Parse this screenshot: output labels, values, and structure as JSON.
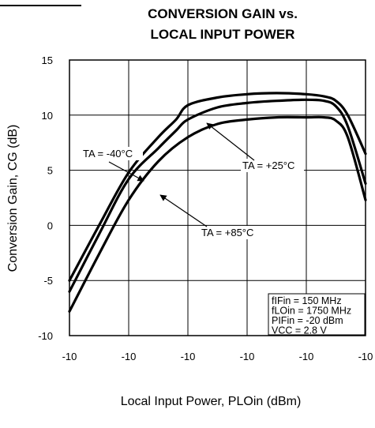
{
  "chart_data": {
    "type": "line",
    "title": [
      "CONVERSION GAIN vs.",
      "LOCAL INPUT POWER"
    ],
    "xlabel": "Local Input Power, PLOin (dBm)",
    "ylabel": "Conversion Gain, CG (dB)",
    "x_tick_labels": [
      "-10",
      "-10",
      "-10",
      "-10",
      "-10",
      "-10"
    ],
    "y_ticks": [
      15,
      10,
      5,
      0,
      -5,
      -10
    ],
    "xlim": [
      0,
      5
    ],
    "ylim": [
      -10,
      15
    ],
    "grid": true,
    "series": [
      {
        "name": "TA = -40°C",
        "x": [
          0,
          0.5,
          1.0,
          1.5,
          1.8,
          2.0,
          2.5,
          3.0,
          3.5,
          4.0,
          4.3,
          4.5,
          4.7,
          5.0
        ],
        "y": [
          -5.0,
          0.0,
          4.8,
          8.0,
          9.6,
          10.9,
          11.6,
          11.9,
          12.0,
          11.9,
          11.7,
          11.3,
          10.0,
          6.5
        ]
      },
      {
        "name": "TA = +25°C",
        "x": [
          0,
          0.5,
          1.0,
          1.5,
          1.8,
          2.0,
          2.5,
          3.0,
          3.5,
          4.0,
          4.3,
          4.5,
          4.7,
          5.0
        ],
        "y": [
          -6.0,
          -0.8,
          4.2,
          7.0,
          8.6,
          9.6,
          10.7,
          11.1,
          11.3,
          11.4,
          11.3,
          10.8,
          9.0,
          3.8
        ]
      },
      {
        "name": "TA = +85°C",
        "x": [
          0,
          0.5,
          1.0,
          1.5,
          2.0,
          2.5,
          3.0,
          3.5,
          4.0,
          4.3,
          4.5,
          4.7,
          5.0
        ],
        "y": [
          -7.8,
          -2.6,
          2.3,
          5.8,
          8.0,
          9.2,
          9.6,
          9.8,
          9.8,
          9.8,
          9.5,
          8.0,
          2.3
        ]
      }
    ],
    "annotations": [
      {
        "text": "TA = -40°C",
        "target": [
          1.0,
          4.8
        ]
      },
      {
        "text": "TA = +25°C",
        "target": [
          2.0,
          9.6
        ]
      },
      {
        "text": "TA = +85°C",
        "target": [
          1.25,
          3.8
        ]
      }
    ],
    "conditions": [
      "fIFin = 150 MHz",
      "fLOin = 1750 MHz",
      "PIFin = -20 dBm",
      "VCC = 2.8 V"
    ]
  }
}
